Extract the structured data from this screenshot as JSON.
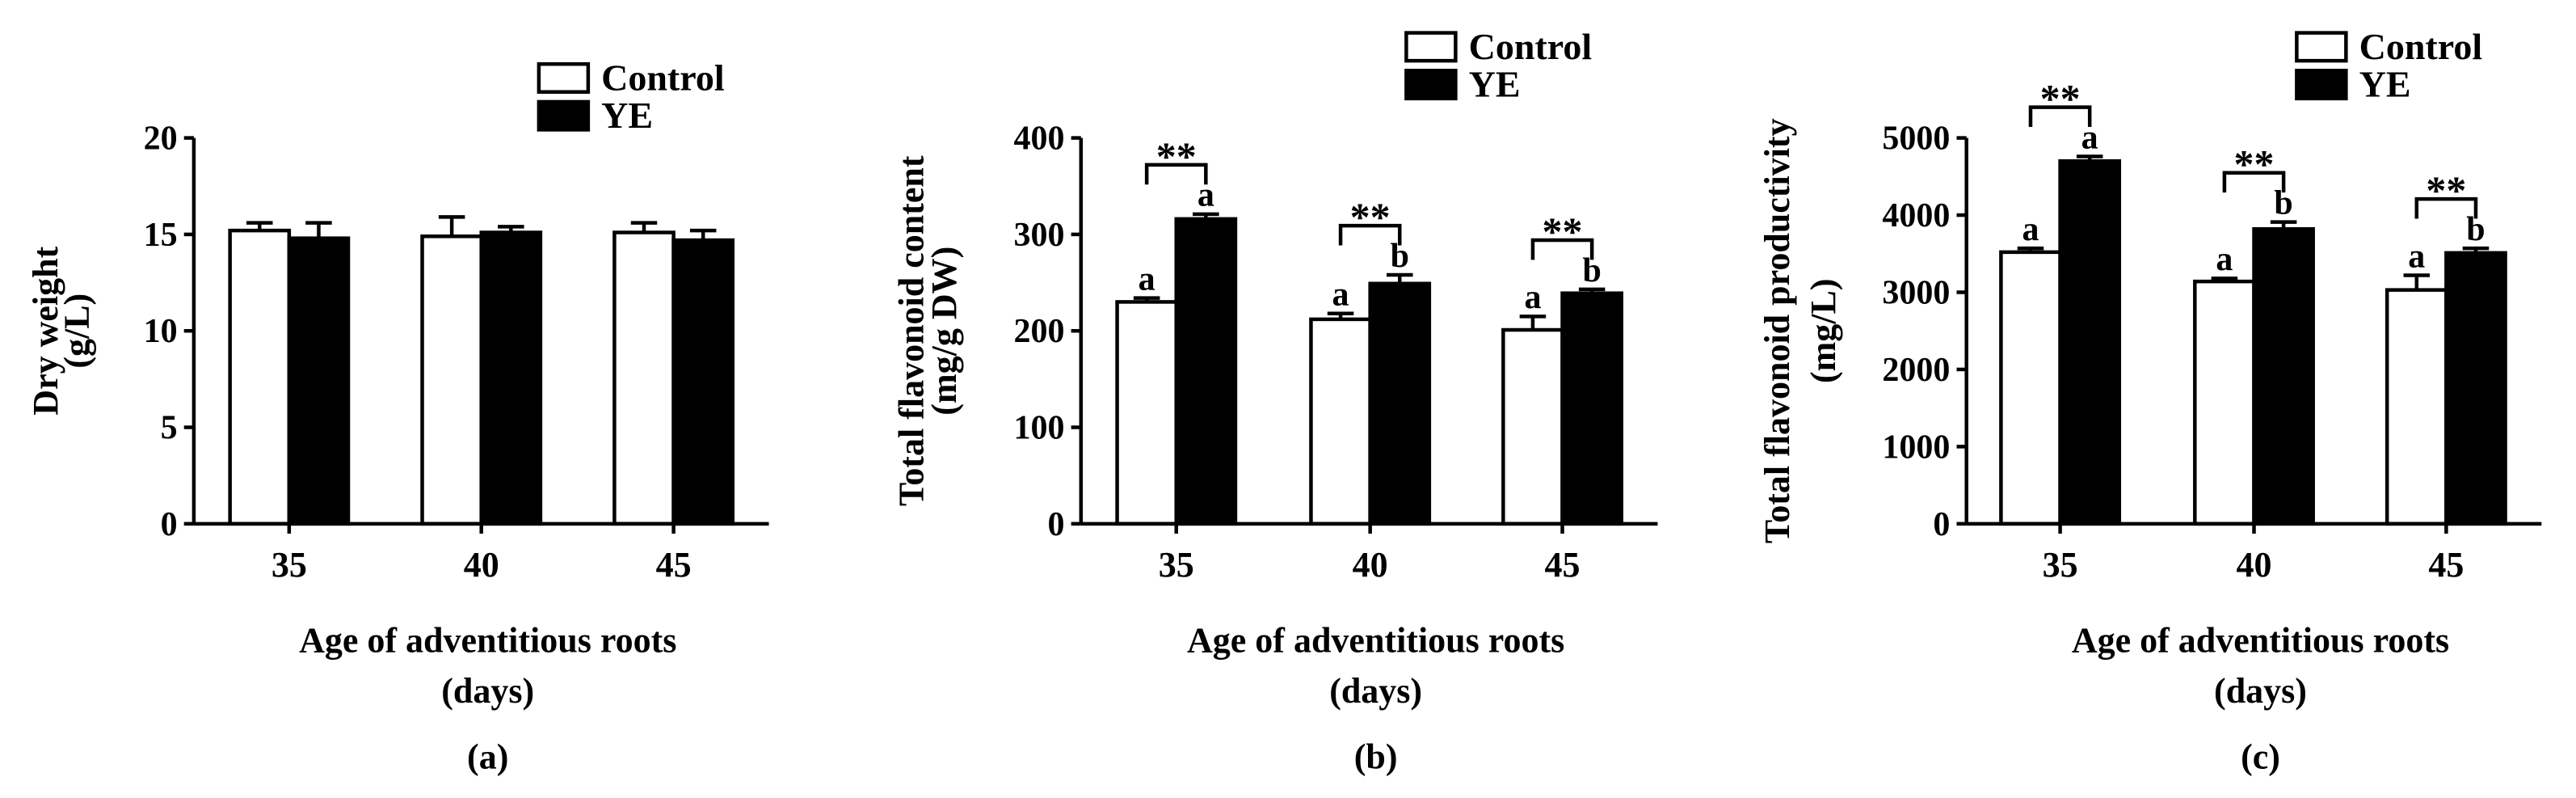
{
  "chart_data": [
    {
      "type": "bar",
      "panel_label": "(a)",
      "categories": [
        "35",
        "40",
        "45"
      ],
      "xlabel_line1": "Age of adventitious roots",
      "xlabel_line2": "(days)",
      "ylabel_line1": "Dry weight",
      "ylabel_line2": "(g/L)",
      "ylim": [
        0,
        20
      ],
      "yticks": [
        "0",
        "5",
        "10",
        "15",
        "20"
      ],
      "legend": [
        "Control",
        "YE"
      ],
      "series": [
        {
          "name": "Control",
          "values": [
            15.2,
            14.9,
            15.1
          ],
          "errors": [
            0.4,
            1.0,
            0.5
          ],
          "letters": [
            "",
            "",
            ""
          ]
        },
        {
          "name": "YE",
          "values": [
            14.8,
            15.1,
            14.7
          ],
          "errors": [
            0.8,
            0.3,
            0.5
          ],
          "letters": [
            "",
            "",
            ""
          ]
        }
      ],
      "significance": [
        "",
        "",
        ""
      ]
    },
    {
      "type": "bar",
      "panel_label": "(b)",
      "categories": [
        "35",
        "40",
        "45"
      ],
      "xlabel_line1": "Age of adventitious roots",
      "xlabel_line2": "(days)",
      "ylabel_line1": "Total flavonoid content",
      "ylabel_line2": "(mg/g DW)",
      "ylim": [
        0,
        400
      ],
      "yticks": [
        "0",
        "100",
        "200",
        "300",
        "400"
      ],
      "legend": [
        "Control",
        "YE"
      ],
      "series": [
        {
          "name": "Control",
          "values": [
            230,
            212,
            201
          ],
          "errors": [
            4,
            6,
            14
          ],
          "letters": [
            "a",
            "a",
            "a"
          ]
        },
        {
          "name": "YE",
          "values": [
            316,
            249,
            239
          ],
          "errors": [
            5,
            9,
            4
          ],
          "letters": [
            "a",
            "b",
            "b"
          ]
        }
      ],
      "significance": [
        "**",
        "**",
        "**"
      ]
    },
    {
      "type": "bar",
      "panel_label": "(c)",
      "categories": [
        "35",
        "40",
        "45"
      ],
      "xlabel_line1": "Age of adventitious roots",
      "xlabel_line2": "(days)",
      "ylabel_line1": "Total flavonoid  productivity",
      "ylabel_line2": "(mg/L)",
      "ylim": [
        0,
        5000
      ],
      "yticks": [
        "0",
        "1000",
        "2000",
        "3000",
        "4000",
        "5000"
      ],
      "legend": [
        "Control",
        "YE"
      ],
      "series": [
        {
          "name": "Control",
          "values": [
            3520,
            3140,
            3030
          ],
          "errors": [
            50,
            40,
            190
          ],
          "letters": [
            "a",
            "a",
            "a"
          ]
        },
        {
          "name": "YE",
          "values": [
            4700,
            3820,
            3510
          ],
          "errors": [
            60,
            90,
            60
          ],
          "letters": [
            "a",
            "b",
            "b"
          ]
        }
      ],
      "significance": [
        "**",
        "**",
        "**"
      ]
    }
  ]
}
